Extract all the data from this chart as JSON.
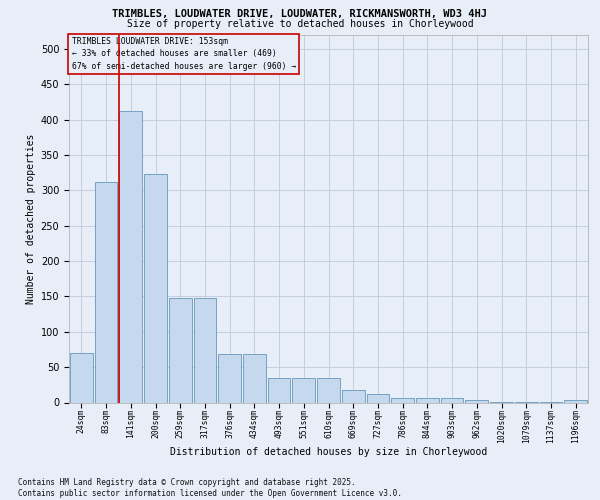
{
  "title": "TRIMBLES, LOUDWATER DRIVE, LOUDWATER, RICKMANSWORTH, WD3 4HJ",
  "subtitle": "Size of property relative to detached houses in Chorleywood",
  "xlabel": "Distribution of detached houses by size in Chorleywood",
  "ylabel": "Number of detached properties",
  "footer": "Contains HM Land Registry data © Crown copyright and database right 2025.\nContains public sector information licensed under the Open Government Licence v3.0.",
  "categories": [
    "24sqm",
    "83sqm",
    "141sqm",
    "200sqm",
    "259sqm",
    "317sqm",
    "376sqm",
    "434sqm",
    "493sqm",
    "551sqm",
    "610sqm",
    "669sqm",
    "727sqm",
    "786sqm",
    "844sqm",
    "903sqm",
    "962sqm",
    "1020sqm",
    "1079sqm",
    "1137sqm",
    "1196sqm"
  ],
  "values": [
    70,
    312,
    412,
    323,
    148,
    148,
    68,
    68,
    35,
    35,
    35,
    17,
    12,
    6,
    6,
    6,
    3,
    1,
    1,
    1,
    4
  ],
  "bar_color": "#c5d8ed",
  "bar_edge_color": "#6699bb",
  "ref_line_index": 2,
  "ref_line_color": "#cc0000",
  "annotation_title": "TRIMBLES LOUDWATER DRIVE: 153sqm",
  "annotation_line1": "← 33% of detached houses are smaller (469)",
  "annotation_line2": "67% of semi-detached houses are larger (960) →",
  "bg_color": "#e8eef8",
  "grid_color": "#c0cad8",
  "ylim": [
    0,
    520
  ],
  "yticks": [
    0,
    50,
    100,
    150,
    200,
    250,
    300,
    350,
    400,
    450,
    500
  ]
}
